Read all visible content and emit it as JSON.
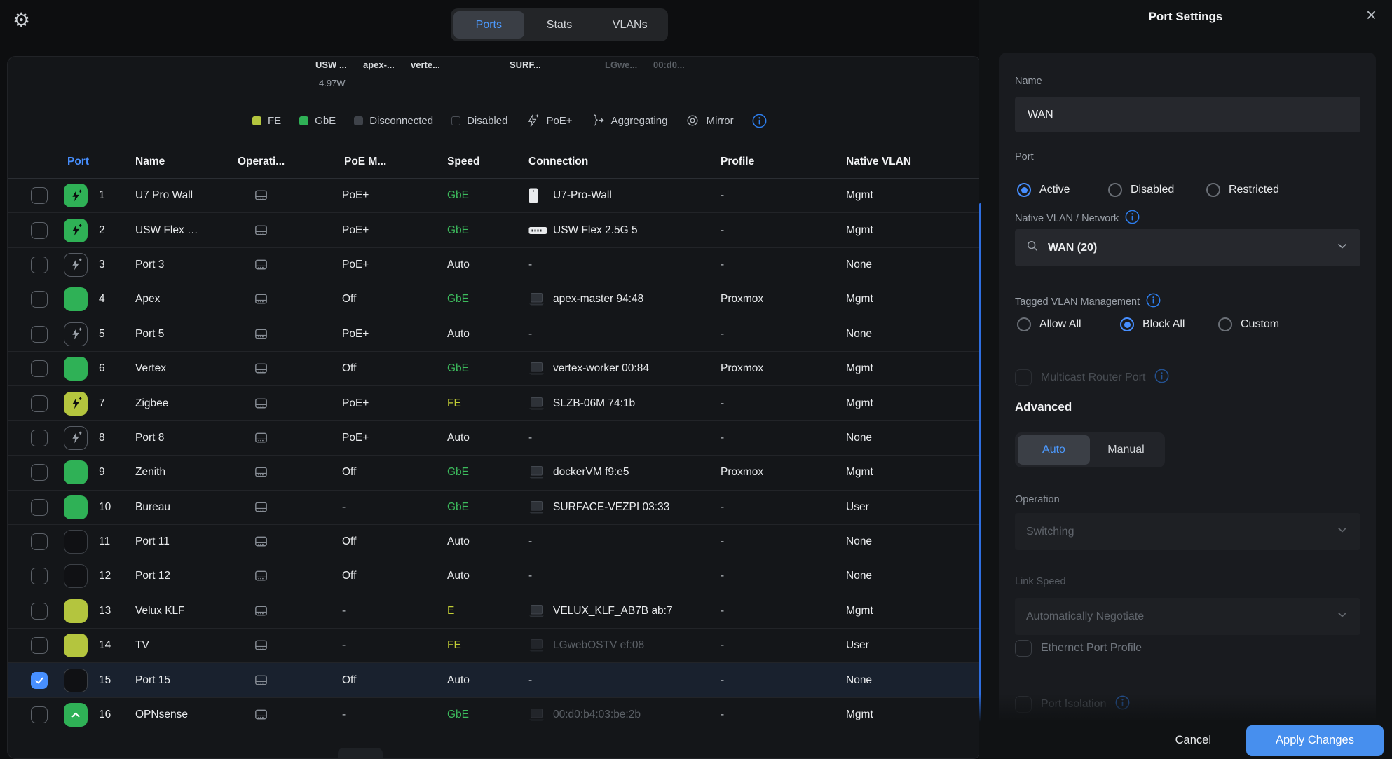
{
  "icons": {
    "gear": "⚙",
    "close": "×"
  },
  "colors": {
    "accent": "#478fff",
    "green": "#2fb156",
    "green_text": "#3dbb5d",
    "yellow": "#b4c53e",
    "yellow_text": "#c3cf35",
    "selected_row": "#19212e"
  },
  "header": {
    "tabs": [
      {
        "label": "Ports",
        "active": true
      },
      {
        "label": "Stats",
        "active": false
      },
      {
        "label": "VLANs",
        "active": false
      }
    ]
  },
  "device_strip": {
    "labels": [
      {
        "text": "USW ...",
        "dim": false
      },
      {
        "text": "apex-...",
        "dim": false
      },
      {
        "text": "verte...",
        "dim": false
      },
      {
        "text": "SURF...",
        "dim": false
      },
      {
        "text": "LGwe...",
        "dim": true
      },
      {
        "text": "00:d0...",
        "dim": true
      }
    ],
    "power": "4.97W"
  },
  "legend": {
    "items": [
      {
        "label": "FE",
        "kind": "sq-fe"
      },
      {
        "label": "GbE",
        "kind": "sq-gbe"
      },
      {
        "label": "Disconnected",
        "kind": "sq-disc"
      },
      {
        "label": "Disabled",
        "kind": "sq-disabled"
      },
      {
        "label": "PoE+",
        "kind": "bolt"
      },
      {
        "label": "Aggregating",
        "kind": "aggregate"
      },
      {
        "label": "Mirror",
        "kind": "mirror"
      },
      {
        "label": "",
        "kind": "info"
      }
    ]
  },
  "table": {
    "columns": [
      {
        "label": "Port",
        "sorted": true
      },
      {
        "label": "Name",
        "sorted": false
      },
      {
        "label": "Operati...",
        "sorted": false
      },
      {
        "label": "PoE M...",
        "sorted": false
      },
      {
        "label": "Speed",
        "sorted": false
      },
      {
        "label": "Connection",
        "sorted": false
      },
      {
        "label": "Profile",
        "sorted": false
      },
      {
        "label": "Native VLAN",
        "sorted": false
      }
    ],
    "rows": [
      {
        "num": "1",
        "icon": "poe-green",
        "name": "U7 Pro Wall",
        "poe": "PoE+",
        "speed": "GbE",
        "speed_style": "green",
        "conn_icon": "ap",
        "conn": "U7-Pro-Wall",
        "conn_dim": false,
        "profile": "-",
        "vlan": "Mgmt",
        "selected": false
      },
      {
        "num": "2",
        "icon": "poe-green",
        "name": "USW Flex …",
        "poe": "PoE+",
        "speed": "GbE",
        "speed_style": "green",
        "conn_icon": "switch",
        "conn": "USW Flex 2.5G 5",
        "conn_dim": false,
        "profile": "-",
        "vlan": "Mgmt",
        "selected": false
      },
      {
        "num": "3",
        "icon": "poe-outline",
        "name": "Port 3",
        "poe": "PoE+",
        "speed": "Auto",
        "speed_style": "white",
        "conn_icon": "none",
        "conn": "-",
        "conn_dim": false,
        "profile": "-",
        "vlan": "None",
        "selected": false
      },
      {
        "num": "4",
        "icon": "green",
        "name": "Apex",
        "poe": "Off",
        "speed": "GbE",
        "speed_style": "green",
        "conn_icon": "client",
        "conn": "apex-master 94:48",
        "conn_dim": false,
        "profile": "Proxmox",
        "vlan": "Mgmt",
        "selected": false
      },
      {
        "num": "5",
        "icon": "poe-outline",
        "name": "Port 5",
        "poe": "PoE+",
        "speed": "Auto",
        "speed_style": "white",
        "conn_icon": "none",
        "conn": "-",
        "conn_dim": false,
        "profile": "-",
        "vlan": "None",
        "selected": false
      },
      {
        "num": "6",
        "icon": "green",
        "name": "Vertex",
        "poe": "Off",
        "speed": "GbE",
        "speed_style": "green",
        "conn_icon": "client",
        "conn": "vertex-worker 00:84",
        "conn_dim": false,
        "profile": "Proxmox",
        "vlan": "Mgmt",
        "selected": false
      },
      {
        "num": "7",
        "icon": "poe-yellow",
        "name": "Zigbee",
        "poe": "PoE+",
        "speed": "FE",
        "speed_style": "yellow",
        "conn_icon": "client",
        "conn": "SLZB-06M 74:1b",
        "conn_dim": false,
        "profile": "-",
        "vlan": "Mgmt",
        "selected": false
      },
      {
        "num": "8",
        "icon": "poe-outline",
        "name": "Port 8",
        "poe": "PoE+",
        "speed": "Auto",
        "speed_style": "white",
        "conn_icon": "none",
        "conn": "-",
        "conn_dim": false,
        "profile": "-",
        "vlan": "None",
        "selected": false
      },
      {
        "num": "9",
        "icon": "green",
        "name": "Zenith",
        "poe": "Off",
        "speed": "GbE",
        "speed_style": "green",
        "conn_icon": "client",
        "conn": "dockerVM f9:e5",
        "conn_dim": false,
        "profile": "Proxmox",
        "vlan": "Mgmt",
        "selected": false
      },
      {
        "num": "10",
        "icon": "green",
        "name": "Bureau",
        "poe": "-",
        "speed": "GbE",
        "speed_style": "green",
        "conn_icon": "client",
        "conn": "SURFACE-VEZPI 03:33",
        "conn_dim": false,
        "profile": "-",
        "vlan": "User",
        "selected": false
      },
      {
        "num": "11",
        "icon": "dark",
        "name": "Port 11",
        "poe": "Off",
        "speed": "Auto",
        "speed_style": "white",
        "conn_icon": "none",
        "conn": "-",
        "conn_dim": false,
        "profile": "-",
        "vlan": "None",
        "selected": false
      },
      {
        "num": "12",
        "icon": "dark",
        "name": "Port 12",
        "poe": "Off",
        "speed": "Auto",
        "speed_style": "white",
        "conn_icon": "none",
        "conn": "-",
        "conn_dim": false,
        "profile": "-",
        "vlan": "None",
        "selected": false
      },
      {
        "num": "13",
        "icon": "yellow",
        "name": "Velux KLF",
        "poe": "-",
        "speed": "E",
        "speed_style": "yellow",
        "conn_icon": "client",
        "conn": "VELUX_KLF_AB7B ab:7",
        "conn_dim": false,
        "profile": "-",
        "vlan": "Mgmt",
        "selected": false
      },
      {
        "num": "14",
        "icon": "yellow",
        "name": "TV",
        "poe": "-",
        "speed": "FE",
        "speed_style": "yellow",
        "conn_icon": "client",
        "conn": "LGwebOSTV ef:08",
        "conn_dim": true,
        "profile": "-",
        "vlan": "User",
        "selected": false
      },
      {
        "num": "15",
        "icon": "dark",
        "name": "Port 15",
        "poe": "Off",
        "speed": "Auto",
        "speed_style": "white",
        "conn_icon": "none",
        "conn": "-",
        "conn_dim": false,
        "profile": "-",
        "vlan": "None",
        "selected": true
      },
      {
        "num": "16",
        "icon": "uplink",
        "name": "OPNsense",
        "poe": "-",
        "speed": "GbE",
        "speed_style": "green",
        "conn_icon": "client",
        "conn": "00:d0:b4:03:be:2b",
        "conn_dim": true,
        "profile": "-",
        "vlan": "Mgmt",
        "selected": false
      }
    ]
  },
  "panel": {
    "title": "Port Settings",
    "name_label": "Name",
    "name_value": "WAN",
    "port_label": "Port",
    "port_options": [
      {
        "label": "Active",
        "selected": true
      },
      {
        "label": "Disabled",
        "selected": false
      },
      {
        "label": "Restricted",
        "selected": false
      }
    ],
    "vlan_label": "Native VLAN / Network",
    "vlan_value": "WAN (20)",
    "tagged_label": "Tagged VLAN Management",
    "tagged_options": [
      {
        "label": "Allow All",
        "selected": false
      },
      {
        "label": "Block All",
        "selected": true
      },
      {
        "label": "Custom",
        "selected": false
      }
    ],
    "multicast_label": "Multicast Router Port",
    "advanced_label": "Advanced",
    "mode_options": [
      {
        "label": "Auto",
        "selected": true
      },
      {
        "label": "Manual",
        "selected": false
      }
    ],
    "operation_label": "Operation",
    "operation_value": "Switching",
    "link_speed_label": "Link Speed",
    "link_speed_value": "Automatically Negotiate",
    "eth_profile_label": "Ethernet Port Profile",
    "isolation_label": "Port Isolation",
    "cancel_label": "Cancel",
    "apply_label": "Apply Changes"
  }
}
